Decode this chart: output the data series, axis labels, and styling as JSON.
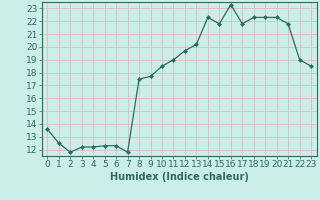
{
  "x": [
    0,
    1,
    2,
    3,
    4,
    5,
    6,
    7,
    8,
    9,
    10,
    11,
    12,
    13,
    14,
    15,
    16,
    17,
    18,
    19,
    20,
    21,
    22,
    23
  ],
  "y": [
    13.6,
    12.5,
    11.8,
    12.2,
    12.2,
    12.3,
    12.3,
    11.8,
    17.5,
    17.7,
    18.5,
    19.0,
    19.7,
    20.2,
    22.3,
    21.8,
    23.3,
    21.8,
    22.3,
    22.3,
    22.3,
    21.8,
    19.0,
    18.5
  ],
  "xlabel": "Humidex (Indice chaleur)",
  "ylim": [
    11.5,
    23.5
  ],
  "xlim": [
    -0.5,
    23.5
  ],
  "yticks": [
    12,
    13,
    14,
    15,
    16,
    17,
    18,
    19,
    20,
    21,
    22,
    23
  ],
  "xticks": [
    0,
    1,
    2,
    3,
    4,
    5,
    6,
    7,
    8,
    9,
    10,
    11,
    12,
    13,
    14,
    15,
    16,
    17,
    18,
    19,
    20,
    21,
    22,
    23
  ],
  "line_color": "#2e6b5e",
  "marker_color": "#2e6b5e",
  "bg_color": "#cceee8",
  "grid_color": "#ddbbbb",
  "xlabel_fontsize": 7,
  "tick_fontsize": 6.5
}
